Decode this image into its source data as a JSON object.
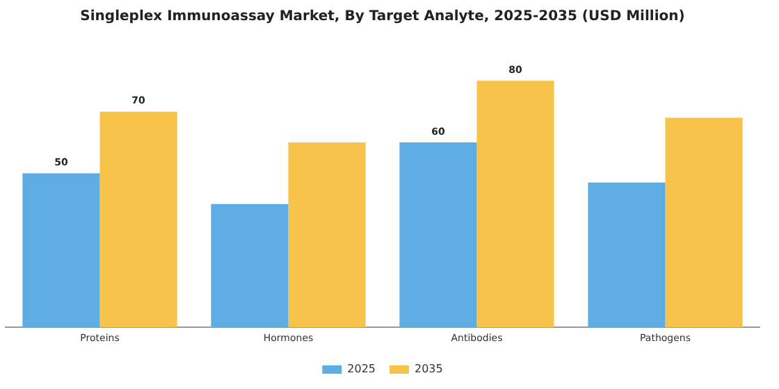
{
  "chart_data": {
    "type": "bar",
    "title": "Singleplex Immunoassay Market, By Target Analyte, 2025-2035 (USD Million)",
    "categories": [
      "Proteins",
      "Hormones",
      "Antibodies",
      "Pathogens"
    ],
    "series": [
      {
        "name": "2025",
        "color": "#5dade2",
        "values": [
          50,
          40,
          60,
          47
        ],
        "value_labels": [
          "50",
          null,
          "60",
          null
        ]
      },
      {
        "name": "2035",
        "color": "#f7c34b",
        "values": [
          70,
          60,
          80,
          68
        ],
        "value_labels": [
          "70",
          null,
          "80",
          null
        ]
      }
    ],
    "legend": "bottom",
    "grid": false,
    "tick_labels": "x"
  }
}
